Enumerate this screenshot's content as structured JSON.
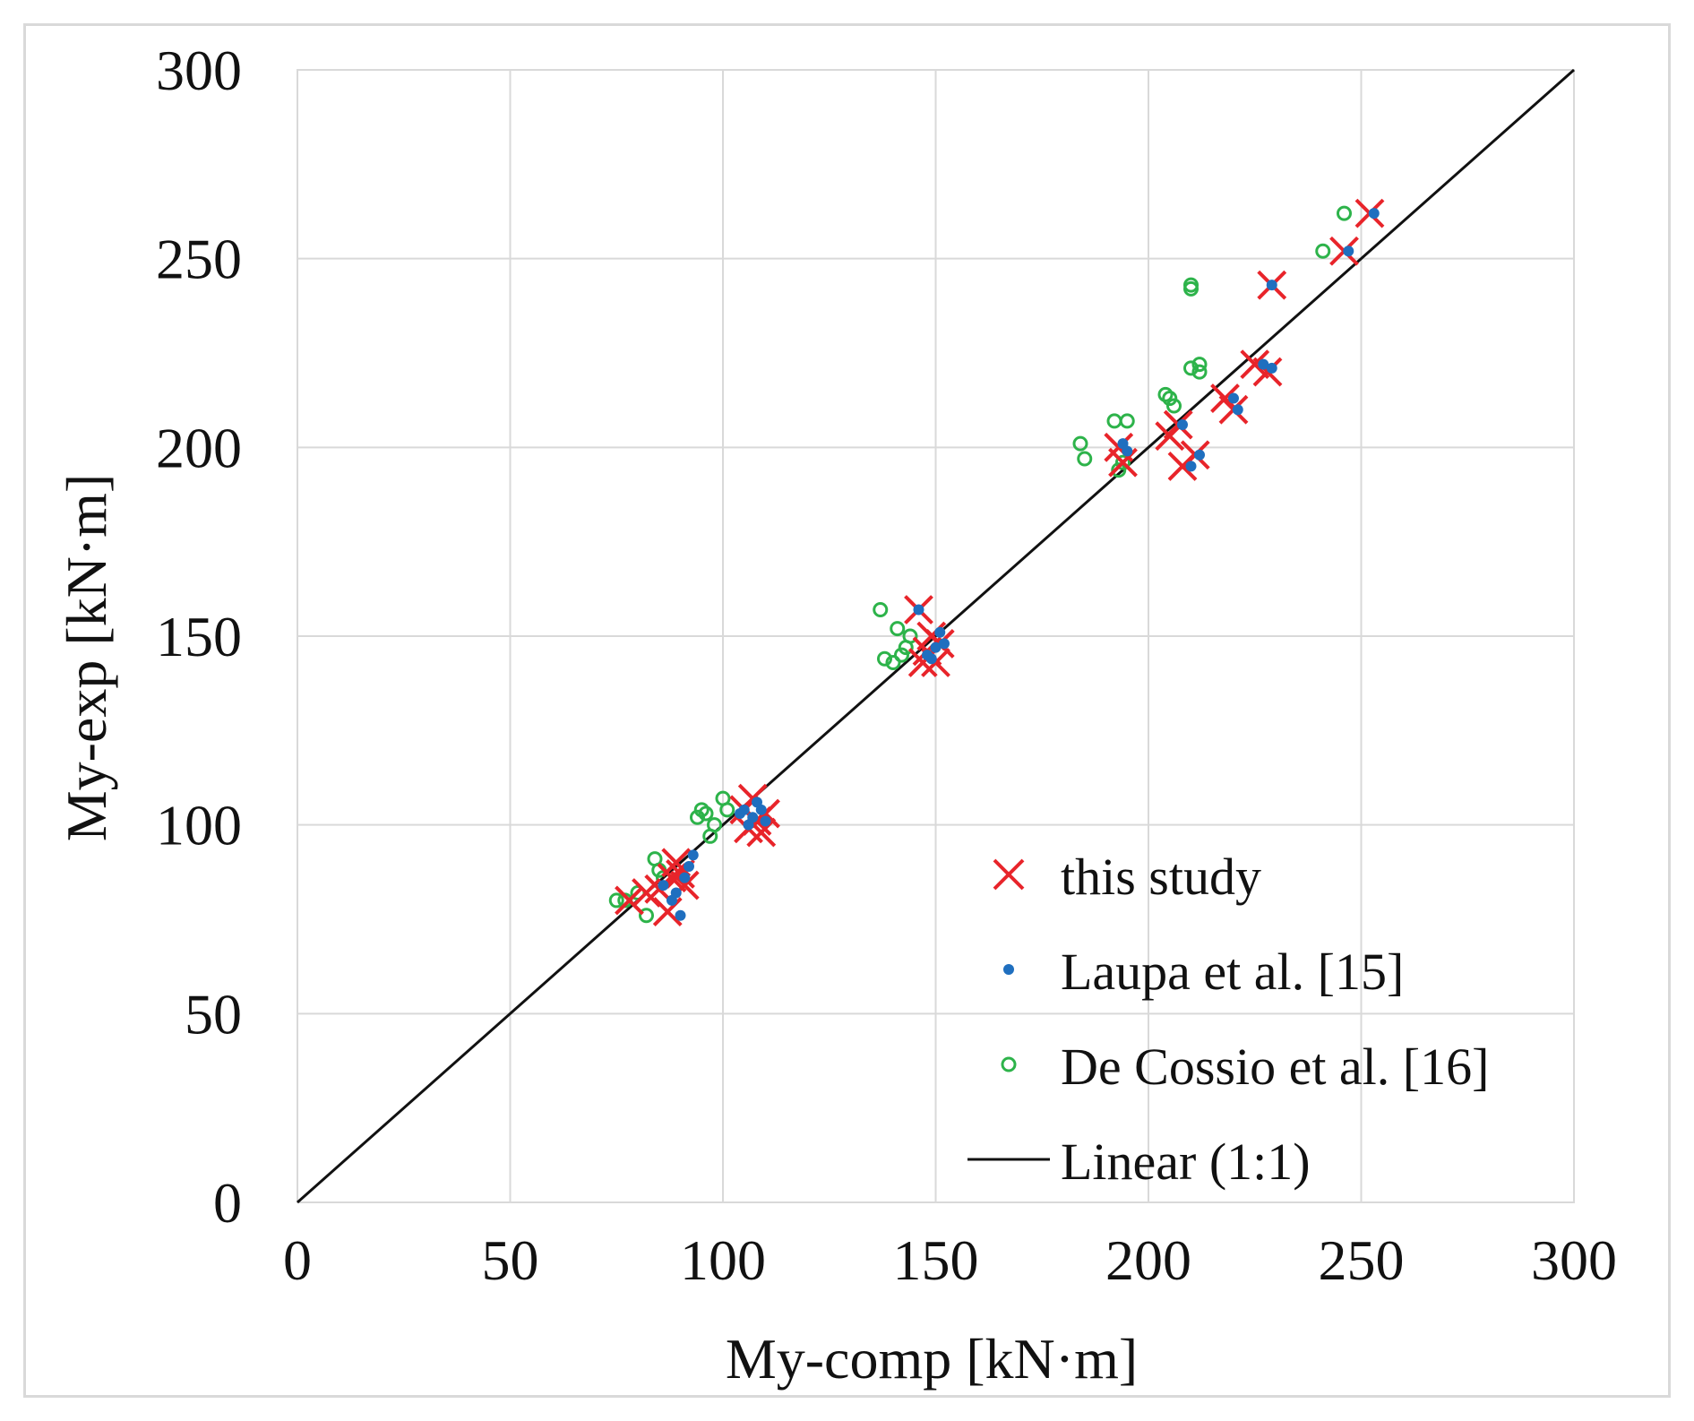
{
  "chart_data": {
    "type": "scatter",
    "title": "",
    "xlabel": "My-comp  [kN·m]",
    "ylabel": "My-exp  [kN·m]",
    "xlim": [
      0,
      300
    ],
    "ylim": [
      0,
      300
    ],
    "xticks": [
      "0",
      "50",
      "100",
      "150",
      "200",
      "250",
      "300"
    ],
    "yticks": [
      "0",
      "50",
      "100",
      "150",
      "200",
      "250",
      "300"
    ],
    "grid": true,
    "legend_position": "bottom-right",
    "colors": {
      "this_study": "#e8242a",
      "laupa": "#1f6fbf",
      "de_cossio": "#2db34a",
      "linear": "#111111",
      "grid": "#d9d9d9"
    },
    "series": [
      {
        "name": "this study",
        "marker": "x",
        "points": [
          [
            78,
            80
          ],
          [
            82,
            82
          ],
          [
            85,
            83
          ],
          [
            87,
            77
          ],
          [
            88,
            86
          ],
          [
            89,
            90
          ],
          [
            90,
            87
          ],
          [
            91,
            84
          ],
          [
            105,
            104
          ],
          [
            106,
            99
          ],
          [
            107,
            107
          ],
          [
            108,
            101
          ],
          [
            109,
            98
          ],
          [
            110,
            103
          ],
          [
            146,
            157
          ],
          [
            147,
            143
          ],
          [
            148,
            146
          ],
          [
            149,
            150
          ],
          [
            150,
            143
          ],
          [
            151,
            148
          ],
          [
            193,
            200
          ],
          [
            194,
            196
          ],
          [
            205,
            203
          ],
          [
            207,
            206
          ],
          [
            208,
            195
          ],
          [
            211,
            198
          ],
          [
            218,
            213
          ],
          [
            220,
            210
          ],
          [
            225,
            222
          ],
          [
            228,
            220
          ],
          [
            229,
            243
          ],
          [
            246,
            252
          ],
          [
            252,
            262
          ]
        ]
      },
      {
        "name": "Laupa et al. [15]",
        "marker": "dot",
        "points": [
          [
            86,
            84
          ],
          [
            88,
            80
          ],
          [
            89,
            82
          ],
          [
            90,
            76
          ],
          [
            91,
            86
          ],
          [
            92,
            89
          ],
          [
            93,
            92
          ],
          [
            104,
            103
          ],
          [
            105,
            104
          ],
          [
            106,
            100
          ],
          [
            107,
            102
          ],
          [
            108,
            106
          ],
          [
            109,
            104
          ],
          [
            110,
            101
          ],
          [
            146,
            157
          ],
          [
            148,
            145
          ],
          [
            149,
            144
          ],
          [
            150,
            147
          ],
          [
            151,
            151
          ],
          [
            152,
            148
          ],
          [
            194,
            201
          ],
          [
            195,
            199
          ],
          [
            208,
            206
          ],
          [
            210,
            195
          ],
          [
            212,
            198
          ],
          [
            220,
            213
          ],
          [
            221,
            210
          ],
          [
            227,
            222
          ],
          [
            229,
            221
          ],
          [
            229,
            243
          ],
          [
            247,
            252
          ],
          [
            253,
            262
          ]
        ]
      },
      {
        "name": "De Cossio et al. [16]",
        "marker": "circle",
        "points": [
          [
            75,
            80
          ],
          [
            77,
            80
          ],
          [
            80,
            82
          ],
          [
            82,
            76
          ],
          [
            84,
            91
          ],
          [
            85,
            88
          ],
          [
            86,
            86
          ],
          [
            94,
            102
          ],
          [
            95,
            104
          ],
          [
            96,
            103
          ],
          [
            97,
            97
          ],
          [
            98,
            100
          ],
          [
            100,
            107
          ],
          [
            101,
            104
          ],
          [
            137,
            157
          ],
          [
            138,
            144
          ],
          [
            140,
            143
          ],
          [
            141,
            152
          ],
          [
            142,
            145
          ],
          [
            143,
            147
          ],
          [
            144,
            150
          ],
          [
            184,
            201
          ],
          [
            185,
            197
          ],
          [
            192,
            207
          ],
          [
            193,
            194
          ],
          [
            194,
            196
          ],
          [
            195,
            207
          ],
          [
            204,
            214
          ],
          [
            205,
            213
          ],
          [
            206,
            211
          ],
          [
            210,
            221
          ],
          [
            210,
            242
          ],
          [
            210,
            243
          ],
          [
            212,
            222
          ],
          [
            212,
            220
          ],
          [
            241,
            252
          ],
          [
            246,
            262
          ]
        ]
      },
      {
        "name": "Linear (1:1)",
        "type": "line",
        "x": [
          0,
          300
        ],
        "y": [
          0,
          300
        ]
      }
    ]
  }
}
